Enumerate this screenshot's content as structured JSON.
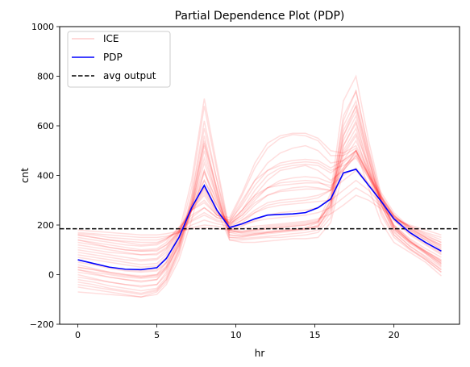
{
  "chart_data": {
    "type": "line",
    "title": "Partial Dependence Plot (PDP)",
    "xlabel": "hr",
    "ylabel": "cnt",
    "xlim": [
      -1.15,
      24.15
    ],
    "ylim": [
      -200,
      1000
    ],
    "x_ticks": [
      0,
      5,
      10,
      15,
      20
    ],
    "y_ticks": [
      -200,
      0,
      200,
      400,
      600,
      800,
      1000
    ],
    "x_tick_labels": [
      "0",
      "5",
      "10",
      "15",
      "20"
    ],
    "y_tick_labels": [
      "−200",
      "0",
      "200",
      "400",
      "600",
      "800",
      "1000"
    ],
    "grid": false,
    "legend_position": "top-left",
    "legend": [
      {
        "label": "ICE",
        "style": "solid",
        "color": "#ff0000",
        "opacity": 0.15
      },
      {
        "label": "PDP",
        "style": "solid",
        "color": "#0000ff"
      },
      {
        "label": "avg output",
        "style": "dashed",
        "color": "#000000"
      }
    ],
    "x": [
      0,
      1,
      2,
      3,
      4,
      5,
      6,
      7,
      8,
      9,
      10,
      11,
      12,
      13,
      14,
      15,
      16,
      17,
      18,
      19,
      20,
      21,
      22,
      23
    ],
    "series": [
      {
        "name": "PDP",
        "x": [
          0,
          1,
          2,
          3,
          4,
          5,
          5.6,
          6.4,
          7.2,
          8,
          8.8,
          9.6,
          10.4,
          11.2,
          12,
          12.8,
          13.6,
          14.4,
          15.2,
          16,
          16.8,
          17.6,
          18.4,
          19.2,
          20,
          21,
          22,
          23
        ],
        "values": [
          60,
          45,
          30,
          22,
          20,
          28,
          65,
          150,
          270,
          360,
          260,
          190,
          205,
          225,
          240,
          243,
          245,
          250,
          270,
          305,
          410,
          425,
          360,
          295,
          225,
          170,
          130,
          95
        ],
        "color": "#0000ff"
      },
      {
        "name": "avg output",
        "x": [
          -1.15,
          24.15
        ],
        "values": [
          185,
          185
        ],
        "color": "#000000",
        "style": "dashed"
      }
    ],
    "ice_series": [
      [
        -70,
        -75,
        -80,
        -85,
        -90,
        -80,
        -40,
        60,
        220,
        420,
        260,
        140,
        130,
        130,
        135,
        140,
        145,
        145,
        150,
        210,
        420,
        500,
        350,
        210,
        130,
        90,
        50,
        -5
      ],
      [
        -50,
        -60,
        -70,
        -80,
        -90,
        -70,
        -30,
        80,
        260,
        500,
        310,
        140,
        140,
        145,
        150,
        150,
        155,
        160,
        170,
        230,
        480,
        560,
        400,
        240,
        150,
        100,
        60,
        10
      ],
      [
        -30,
        -40,
        -55,
        -65,
        -75,
        -60,
        -20,
        100,
        290,
        560,
        340,
        150,
        145,
        150,
        155,
        160,
        165,
        170,
        180,
        250,
        520,
        610,
        430,
        260,
        160,
        105,
        65,
        20
      ],
      [
        -10,
        -20,
        -30,
        -40,
        -50,
        -40,
        10,
        130,
        320,
        620,
        380,
        160,
        155,
        160,
        165,
        170,
        175,
        180,
        190,
        280,
        580,
        680,
        470,
        280,
        175,
        115,
        75,
        30
      ],
      [
        10,
        0,
        -10,
        -20,
        -30,
        -20,
        30,
        150,
        350,
        680,
        420,
        170,
        160,
        165,
        170,
        175,
        180,
        185,
        200,
        300,
        620,
        740,
        500,
        300,
        185,
        125,
        85,
        40
      ],
      [
        30,
        20,
        10,
        0,
        -10,
        0,
        50,
        170,
        380,
        710,
        440,
        180,
        165,
        170,
        175,
        180,
        185,
        190,
        210,
        330,
        700,
        800,
        540,
        320,
        195,
        135,
        95,
        55
      ],
      [
        80,
        70,
        60,
        50,
        40,
        45,
        80,
        160,
        260,
        340,
        250,
        200,
        260,
        320,
        380,
        420,
        430,
        440,
        420,
        380,
        420,
        480,
        390,
        300,
        220,
        160,
        120,
        80
      ],
      [
        100,
        90,
        80,
        70,
        60,
        65,
        100,
        170,
        260,
        320,
        240,
        210,
        290,
        380,
        450,
        490,
        510,
        520,
        500,
        450,
        460,
        500,
        400,
        310,
        230,
        170,
        130,
        90
      ],
      [
        120,
        110,
        100,
        90,
        80,
        85,
        110,
        180,
        260,
        300,
        240,
        220,
        320,
        430,
        510,
        550,
        565,
        560,
        540,
        480,
        480,
        510,
        410,
        320,
        240,
        180,
        140,
        100
      ],
      [
        140,
        130,
        120,
        110,
        100,
        105,
        130,
        190,
        260,
        290,
        240,
        230,
        330,
        450,
        530,
        560,
        570,
        570,
        550,
        500,
        490,
        520,
        420,
        330,
        250,
        190,
        150,
        110
      ],
      [
        150,
        140,
        130,
        120,
        115,
        120,
        140,
        190,
        240,
        270,
        230,
        220,
        300,
        380,
        420,
        440,
        450,
        455,
        450,
        420,
        440,
        470,
        390,
        310,
        240,
        185,
        150,
        120
      ],
      [
        160,
        150,
        140,
        130,
        120,
        125,
        145,
        180,
        220,
        250,
        220,
        210,
        260,
        320,
        350,
        360,
        365,
        370,
        370,
        360,
        400,
        430,
        370,
        300,
        235,
        190,
        155,
        130
      ],
      [
        165,
        160,
        150,
        145,
        140,
        140,
        150,
        170,
        200,
        220,
        205,
        195,
        220,
        250,
        270,
        280,
        285,
        290,
        295,
        300,
        340,
        380,
        340,
        285,
        230,
        195,
        165,
        140
      ],
      [
        170,
        165,
        160,
        155,
        150,
        150,
        155,
        170,
        190,
        200,
        195,
        185,
        200,
        215,
        225,
        230,
        235,
        240,
        250,
        270,
        310,
        350,
        320,
        275,
        225,
        195,
        170,
        150
      ],
      [
        180,
        175,
        170,
        165,
        160,
        160,
        165,
        175,
        185,
        190,
        185,
        180,
        185,
        195,
        200,
        205,
        210,
        215,
        225,
        245,
        280,
        320,
        300,
        265,
        225,
        200,
        180,
        160
      ],
      [
        60,
        45,
        30,
        20,
        15,
        20,
        50,
        140,
        280,
        420,
        290,
        170,
        175,
        185,
        195,
        200,
        205,
        210,
        220,
        280,
        520,
        620,
        440,
        280,
        180,
        130,
        95,
        60
      ],
      [
        40,
        25,
        10,
        0,
        -5,
        0,
        35,
        130,
        290,
        470,
        320,
        175,
        170,
        180,
        190,
        195,
        200,
        205,
        215,
        280,
        560,
        660,
        460,
        290,
        185,
        130,
        90,
        50
      ],
      [
        20,
        5,
        -10,
        -20,
        -25,
        -20,
        20,
        120,
        300,
        530,
        350,
        180,
        170,
        175,
        185,
        190,
        195,
        200,
        210,
        290,
        600,
        700,
        490,
        300,
        190,
        135,
        90,
        45
      ],
      [
        0,
        -15,
        -30,
        -40,
        -45,
        -40,
        0,
        110,
        310,
        590,
        380,
        185,
        175,
        180,
        185,
        190,
        195,
        200,
        215,
        300,
        640,
        740,
        510,
        310,
        195,
        135,
        85,
        35
      ],
      [
        90,
        80,
        70,
        60,
        55,
        60,
        90,
        170,
        280,
        380,
        280,
        200,
        230,
        280,
        320,
        340,
        350,
        355,
        350,
        340,
        420,
        480,
        400,
        300,
        225,
        170,
        130,
        95
      ],
      [
        110,
        100,
        90,
        85,
        80,
        80,
        105,
        175,
        270,
        350,
        260,
        205,
        240,
        300,
        350,
        380,
        390,
        395,
        390,
        370,
        430,
        490,
        400,
        310,
        230,
        175,
        140,
        105
      ],
      [
        130,
        120,
        110,
        100,
        95,
        95,
        120,
        180,
        260,
        330,
        250,
        210,
        260,
        340,
        400,
        430,
        440,
        445,
        440,
        410,
        450,
        500,
        405,
        315,
        235,
        180,
        145,
        115
      ],
      [
        50,
        40,
        25,
        15,
        10,
        15,
        45,
        130,
        260,
        380,
        280,
        190,
        220,
        260,
        290,
        300,
        305,
        310,
        320,
        340,
        460,
        540,
        420,
        290,
        200,
        145,
        105,
        70
      ],
      [
        30,
        20,
        5,
        -5,
        -10,
        -5,
        30,
        120,
        260,
        410,
        300,
        185,
        210,
        250,
        280,
        290,
        295,
        300,
        310,
        340,
        490,
        570,
        440,
        295,
        200,
        140,
        95,
        55
      ],
      [
        -40,
        -50,
        -60,
        -70,
        -80,
        -65,
        -20,
        90,
        270,
        520,
        330,
        150,
        150,
        160,
        170,
        175,
        180,
        185,
        195,
        260,
        500,
        590,
        420,
        250,
        160,
        105,
        60,
        10
      ],
      [
        70,
        60,
        50,
        40,
        30,
        35,
        70,
        150,
        260,
        350,
        260,
        195,
        250,
        310,
        350,
        370,
        375,
        380,
        375,
        350,
        430,
        500,
        400,
        300,
        220,
        165,
        125,
        85
      ],
      [
        140,
        125,
        110,
        100,
        95,
        100,
        120,
        170,
        230,
        270,
        230,
        215,
        280,
        360,
        420,
        450,
        460,
        465,
        460,
        430,
        460,
        500,
        405,
        315,
        240,
        185,
        150,
        120
      ],
      [
        20,
        10,
        0,
        -10,
        -15,
        -10,
        25,
        115,
        270,
        450,
        310,
        180,
        195,
        220,
        240,
        250,
        255,
        260,
        270,
        310,
        540,
        640,
        460,
        300,
        190,
        135,
        90,
        45
      ],
      [
        160,
        150,
        140,
        135,
        130,
        130,
        145,
        175,
        215,
        240,
        215,
        205,
        240,
        290,
        320,
        335,
        340,
        345,
        345,
        340,
        380,
        420,
        360,
        295,
        235,
        195,
        160,
        130
      ],
      [
        -20,
        -30,
        -45,
        -55,
        -65,
        -55,
        -10,
        100,
        280,
        540,
        340,
        160,
        155,
        165,
        170,
        175,
        180,
        185,
        195,
        270,
        560,
        680,
        480,
        280,
        170,
        115,
        70,
        20
      ]
    ]
  }
}
